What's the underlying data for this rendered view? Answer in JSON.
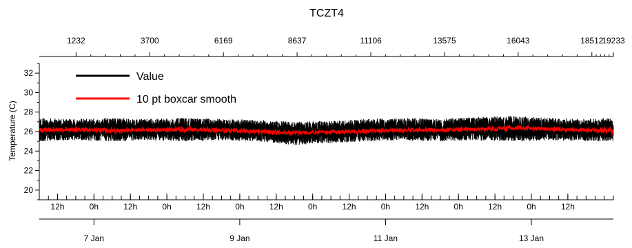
{
  "chart_data": {
    "type": "line",
    "title": "TCZT4",
    "ylabel": "Temperature (C)",
    "ylim": [
      19,
      33
    ],
    "y_ticks": [
      20,
      22,
      24,
      26,
      28,
      30,
      32
    ],
    "x_range": [
      "2024-01-06T06:00",
      "2024-01-14T03:00"
    ],
    "x_hour_ticks": [
      {
        "label": "12h",
        "time": "2024-01-06T12:00"
      },
      {
        "label": "0h",
        "time": "2024-01-07T00:00"
      },
      {
        "label": "12h",
        "time": "2024-01-07T12:00"
      },
      {
        "label": "0h",
        "time": "2024-01-08T00:00"
      },
      {
        "label": "12h",
        "time": "2024-01-08T12:00"
      },
      {
        "label": "0h",
        "time": "2024-01-09T00:00"
      },
      {
        "label": "12h",
        "time": "2024-01-09T12:00"
      },
      {
        "label": "0h",
        "time": "2024-01-10T00:00"
      },
      {
        "label": "12h",
        "time": "2024-01-10T12:00"
      },
      {
        "label": "0h",
        "time": "2024-01-11T00:00"
      },
      {
        "label": "12h",
        "time": "2024-01-11T12:00"
      },
      {
        "label": "0h",
        "time": "2024-01-12T00:00"
      },
      {
        "label": "12h",
        "time": "2024-01-12T12:00"
      },
      {
        "label": "0h",
        "time": "2024-01-13T00:00"
      },
      {
        "label": "12h",
        "time": "2024-01-13T12:00"
      }
    ],
    "x_date_ticks": [
      {
        "label": "7 Jan",
        "time": "2024-01-07T00:00"
      },
      {
        "label": "9 Jan",
        "time": "2024-01-09T00:00"
      },
      {
        "label": "11 Jan",
        "time": "2024-01-11T00:00"
      },
      {
        "label": "13 Jan",
        "time": "2024-01-13T00:00"
      }
    ],
    "top_axis": {
      "range": [
        0,
        19233
      ],
      "ticks": [
        1232,
        3700,
        6169,
        8637,
        11106,
        13575,
        16043,
        18512,
        19233
      ],
      "tick_labels": [
        "1232",
        "3700",
        "6169",
        "8637",
        "11106",
        "13575",
        "16043",
        "18512",
        "19233"
      ]
    },
    "series": [
      {
        "name": "Value",
        "color": "#000000",
        "x": [
          "2024-01-06T06:00",
          "2024-01-06T18:00",
          "2024-01-07T06:00",
          "2024-01-07T18:00",
          "2024-01-08T06:00",
          "2024-01-08T18:00",
          "2024-01-09T06:00",
          "2024-01-09T18:00",
          "2024-01-10T06:00",
          "2024-01-10T18:00",
          "2024-01-11T06:00",
          "2024-01-11T18:00",
          "2024-01-12T06:00",
          "2024-01-12T18:00",
          "2024-01-13T06:00",
          "2024-01-13T18:00",
          "2024-01-14T03:00"
        ],
        "min": [
          25.0,
          25.1,
          25.0,
          25.1,
          25.0,
          25.1,
          25.0,
          24.6,
          24.8,
          25.0,
          25.1,
          25.0,
          25.1,
          25.0,
          25.1,
          25.0,
          25.0
        ],
        "max": [
          27.4,
          27.3,
          27.4,
          27.3,
          27.4,
          27.3,
          27.2,
          27.0,
          27.1,
          27.3,
          27.4,
          27.3,
          27.5,
          27.6,
          27.4,
          27.3,
          27.4
        ]
      },
      {
        "name": "10 pt boxcar smooth",
        "color": "#ff0000",
        "x": [
          "2024-01-06T06:00",
          "2024-01-06T18:00",
          "2024-01-07T06:00",
          "2024-01-07T18:00",
          "2024-01-08T06:00",
          "2024-01-08T18:00",
          "2024-01-09T06:00",
          "2024-01-09T18:00",
          "2024-01-10T06:00",
          "2024-01-10T18:00",
          "2024-01-11T06:00",
          "2024-01-11T18:00",
          "2024-01-12T06:00",
          "2024-01-12T18:00",
          "2024-01-13T06:00",
          "2024-01-13T18:00",
          "2024-01-14T03:00"
        ],
        "min": [
          25.8,
          25.8,
          25.7,
          25.8,
          25.8,
          25.8,
          25.6,
          25.5,
          25.6,
          25.7,
          25.8,
          25.8,
          25.9,
          25.9,
          25.9,
          25.8,
          25.6
        ],
        "max": [
          26.5,
          26.6,
          26.5,
          26.5,
          26.6,
          26.5,
          26.4,
          26.2,
          26.3,
          26.4,
          26.5,
          26.5,
          26.6,
          26.8,
          26.6,
          26.5,
          26.6
        ]
      }
    ],
    "legend_position": "top-left",
    "grid": false
  }
}
